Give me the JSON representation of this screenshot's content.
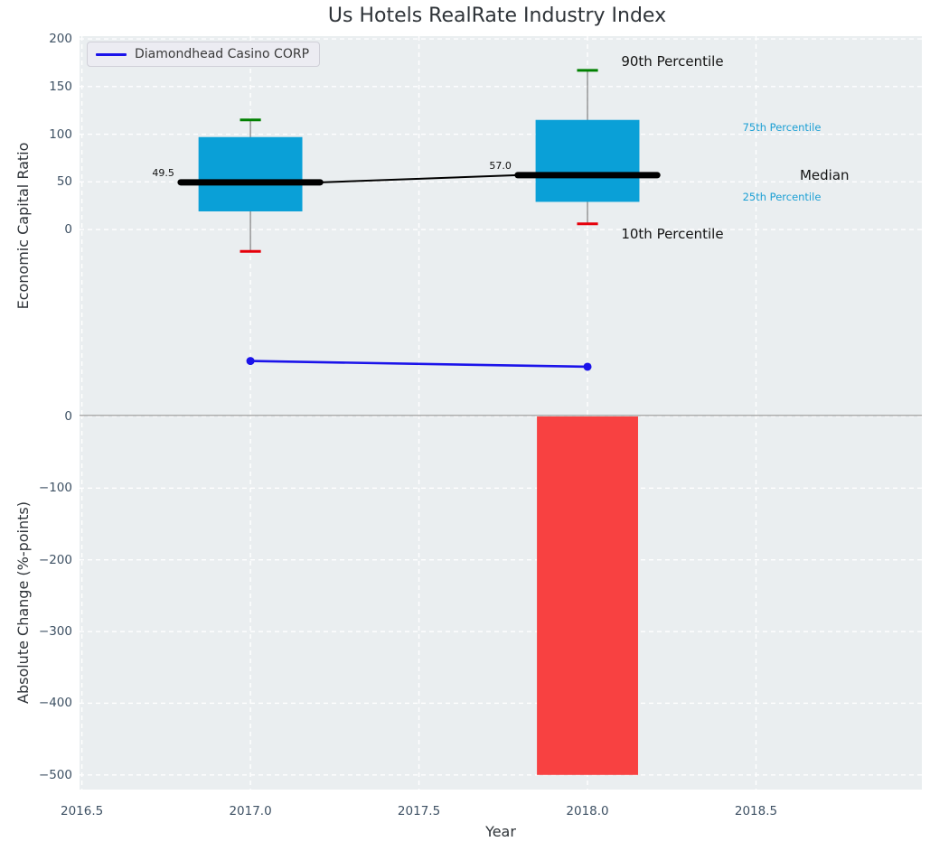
{
  "chart_data": {
    "type": "combo",
    "title": "Us Hotels RealRate Industry Index",
    "xlabel": "Year",
    "xlim": [
      2016.493,
      2018.992
    ],
    "xticks": [
      {
        "v": 2016.5,
        "label": "2016.5"
      },
      {
        "v": 2017.0,
        "label": "2017.0"
      },
      {
        "v": 2017.5,
        "label": "2017.5"
      },
      {
        "v": 2018.0,
        "label": "2018.0"
      },
      {
        "v": 2018.5,
        "label": "2018.5"
      }
    ],
    "colors": {
      "box": "#0aa0d7",
      "median": "#000000",
      "whisker": "#7f7f7f",
      "cap_high": "#008000",
      "cap_low": "#e6000a",
      "company_line": "#1b13ea",
      "bar_negative": "#f84141",
      "grid": "#ffffff",
      "plot_bg": "#eaeef0",
      "separator": "#b0b0b0",
      "tick_text": "#3e5164",
      "cyan_label": "#1b9fd4"
    },
    "top_panel": {
      "type": "boxplot+line",
      "ylabel": "Economic Capital Ratio",
      "ylim": [
        -194.3,
        202.9
      ],
      "yticks": [
        {
          "v": 200,
          "label": "200"
        },
        {
          "v": 150,
          "label": "150"
        },
        {
          "v": 100,
          "label": "100"
        },
        {
          "v": 50,
          "label": "50"
        },
        {
          "v": 0,
          "label": "0"
        }
      ],
      "boxes": [
        {
          "year": 2017,
          "p10": -23,
          "p25": 19,
          "median": 49.5,
          "p75": 97,
          "p90": 115,
          "median_label": "49.5"
        },
        {
          "year": 2018,
          "p10": 6,
          "p25": 29,
          "median": 57.0,
          "p75": 115,
          "p90": 167,
          "median_label": "57.0"
        }
      ],
      "company_series": {
        "name": "Diamondhead Casino CORP",
        "points": [
          {
            "year": 2017,
            "value": -138
          },
          {
            "year": 2018,
            "value": -144
          }
        ]
      },
      "annotations": [
        {
          "text": "90th Percentile",
          "year": 2018.1,
          "value": 176,
          "size": 15,
          "color": "#141414"
        },
        {
          "text": "10th Percentile",
          "year": 2018.1,
          "value": -4.6,
          "size": 15,
          "color": "#141414"
        },
        {
          "text": "75th Percentile",
          "year": 2018.46,
          "value": 107.5,
          "size": 11.5,
          "color": "#1b9fd4"
        },
        {
          "text": "25th Percentile",
          "year": 2018.46,
          "value": 34.3,
          "size": 11.5,
          "color": "#1b9fd4"
        },
        {
          "text": "Median",
          "year": 2018.63,
          "value": 57.2,
          "size": 15,
          "color": "#141414"
        }
      ]
    },
    "bottom_panel": {
      "type": "bar",
      "ylabel": "Absolute Change (%-points)",
      "ylim": [
        -520.4,
        2.5
      ],
      "yticks": [
        {
          "v": 0,
          "label": "0"
        },
        {
          "v": -100,
          "label": "−100"
        },
        {
          "v": -200,
          "label": "−200"
        },
        {
          "v": -300,
          "label": "−300"
        },
        {
          "v": -400,
          "label": "−400"
        },
        {
          "v": -500,
          "label": "−500"
        }
      ],
      "bars": [
        {
          "year": 2018,
          "value": -500
        }
      ]
    },
    "legend": {
      "label": "Diamondhead Casino CORP"
    }
  }
}
